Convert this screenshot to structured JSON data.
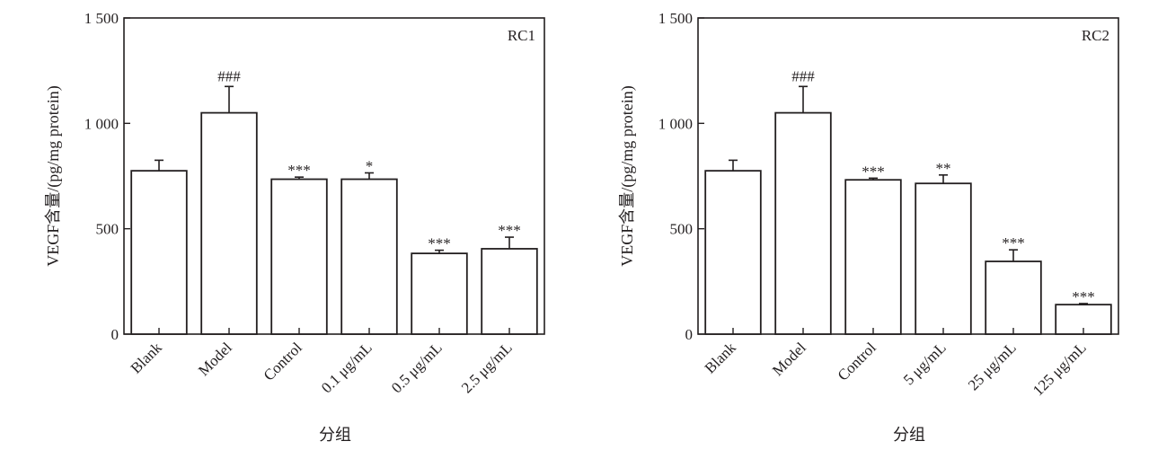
{
  "chart_data": [
    {
      "type": "bar",
      "panel_label": "RC1",
      "categories": [
        "Blank",
        "Model",
        "Control",
        "0.1 μg/mL",
        "0.5 μg/mL",
        "2.5 μg/mL"
      ],
      "values": [
        775,
        1050,
        735,
        735,
        383,
        405
      ],
      "errors": [
        50,
        125,
        10,
        30,
        15,
        55
      ],
      "significance": [
        "",
        "###",
        "***",
        "*",
        "***",
        "***"
      ],
      "xlabel": "分组",
      "ylabel": "VEGF含量/(pg/mg protein)",
      "ylim": [
        0,
        1500
      ],
      "yticks": [
        0,
        500,
        1000,
        1500
      ],
      "ytick_labels": [
        "0",
        "500",
        "1 000",
        "1 500"
      ]
    },
    {
      "type": "bar",
      "panel_label": "RC2",
      "categories": [
        "Blank",
        "Model",
        "Control",
        "5 μg/mL",
        "25 μg/mL",
        "125 μg/mL"
      ],
      "values": [
        775,
        1050,
        732,
        715,
        345,
        140
      ],
      "errors": [
        50,
        125,
        8,
        40,
        55,
        5
      ],
      "significance": [
        "",
        "###",
        "***",
        "**",
        "***",
        "***"
      ],
      "xlabel": "分组",
      "ylabel": "VEGF含量/(pg/mg protein)",
      "ylim": [
        0,
        1500
      ],
      "yticks": [
        0,
        500,
        1000,
        1500
      ],
      "ytick_labels": [
        "0",
        "500",
        "1 000",
        "1 500"
      ]
    }
  ]
}
